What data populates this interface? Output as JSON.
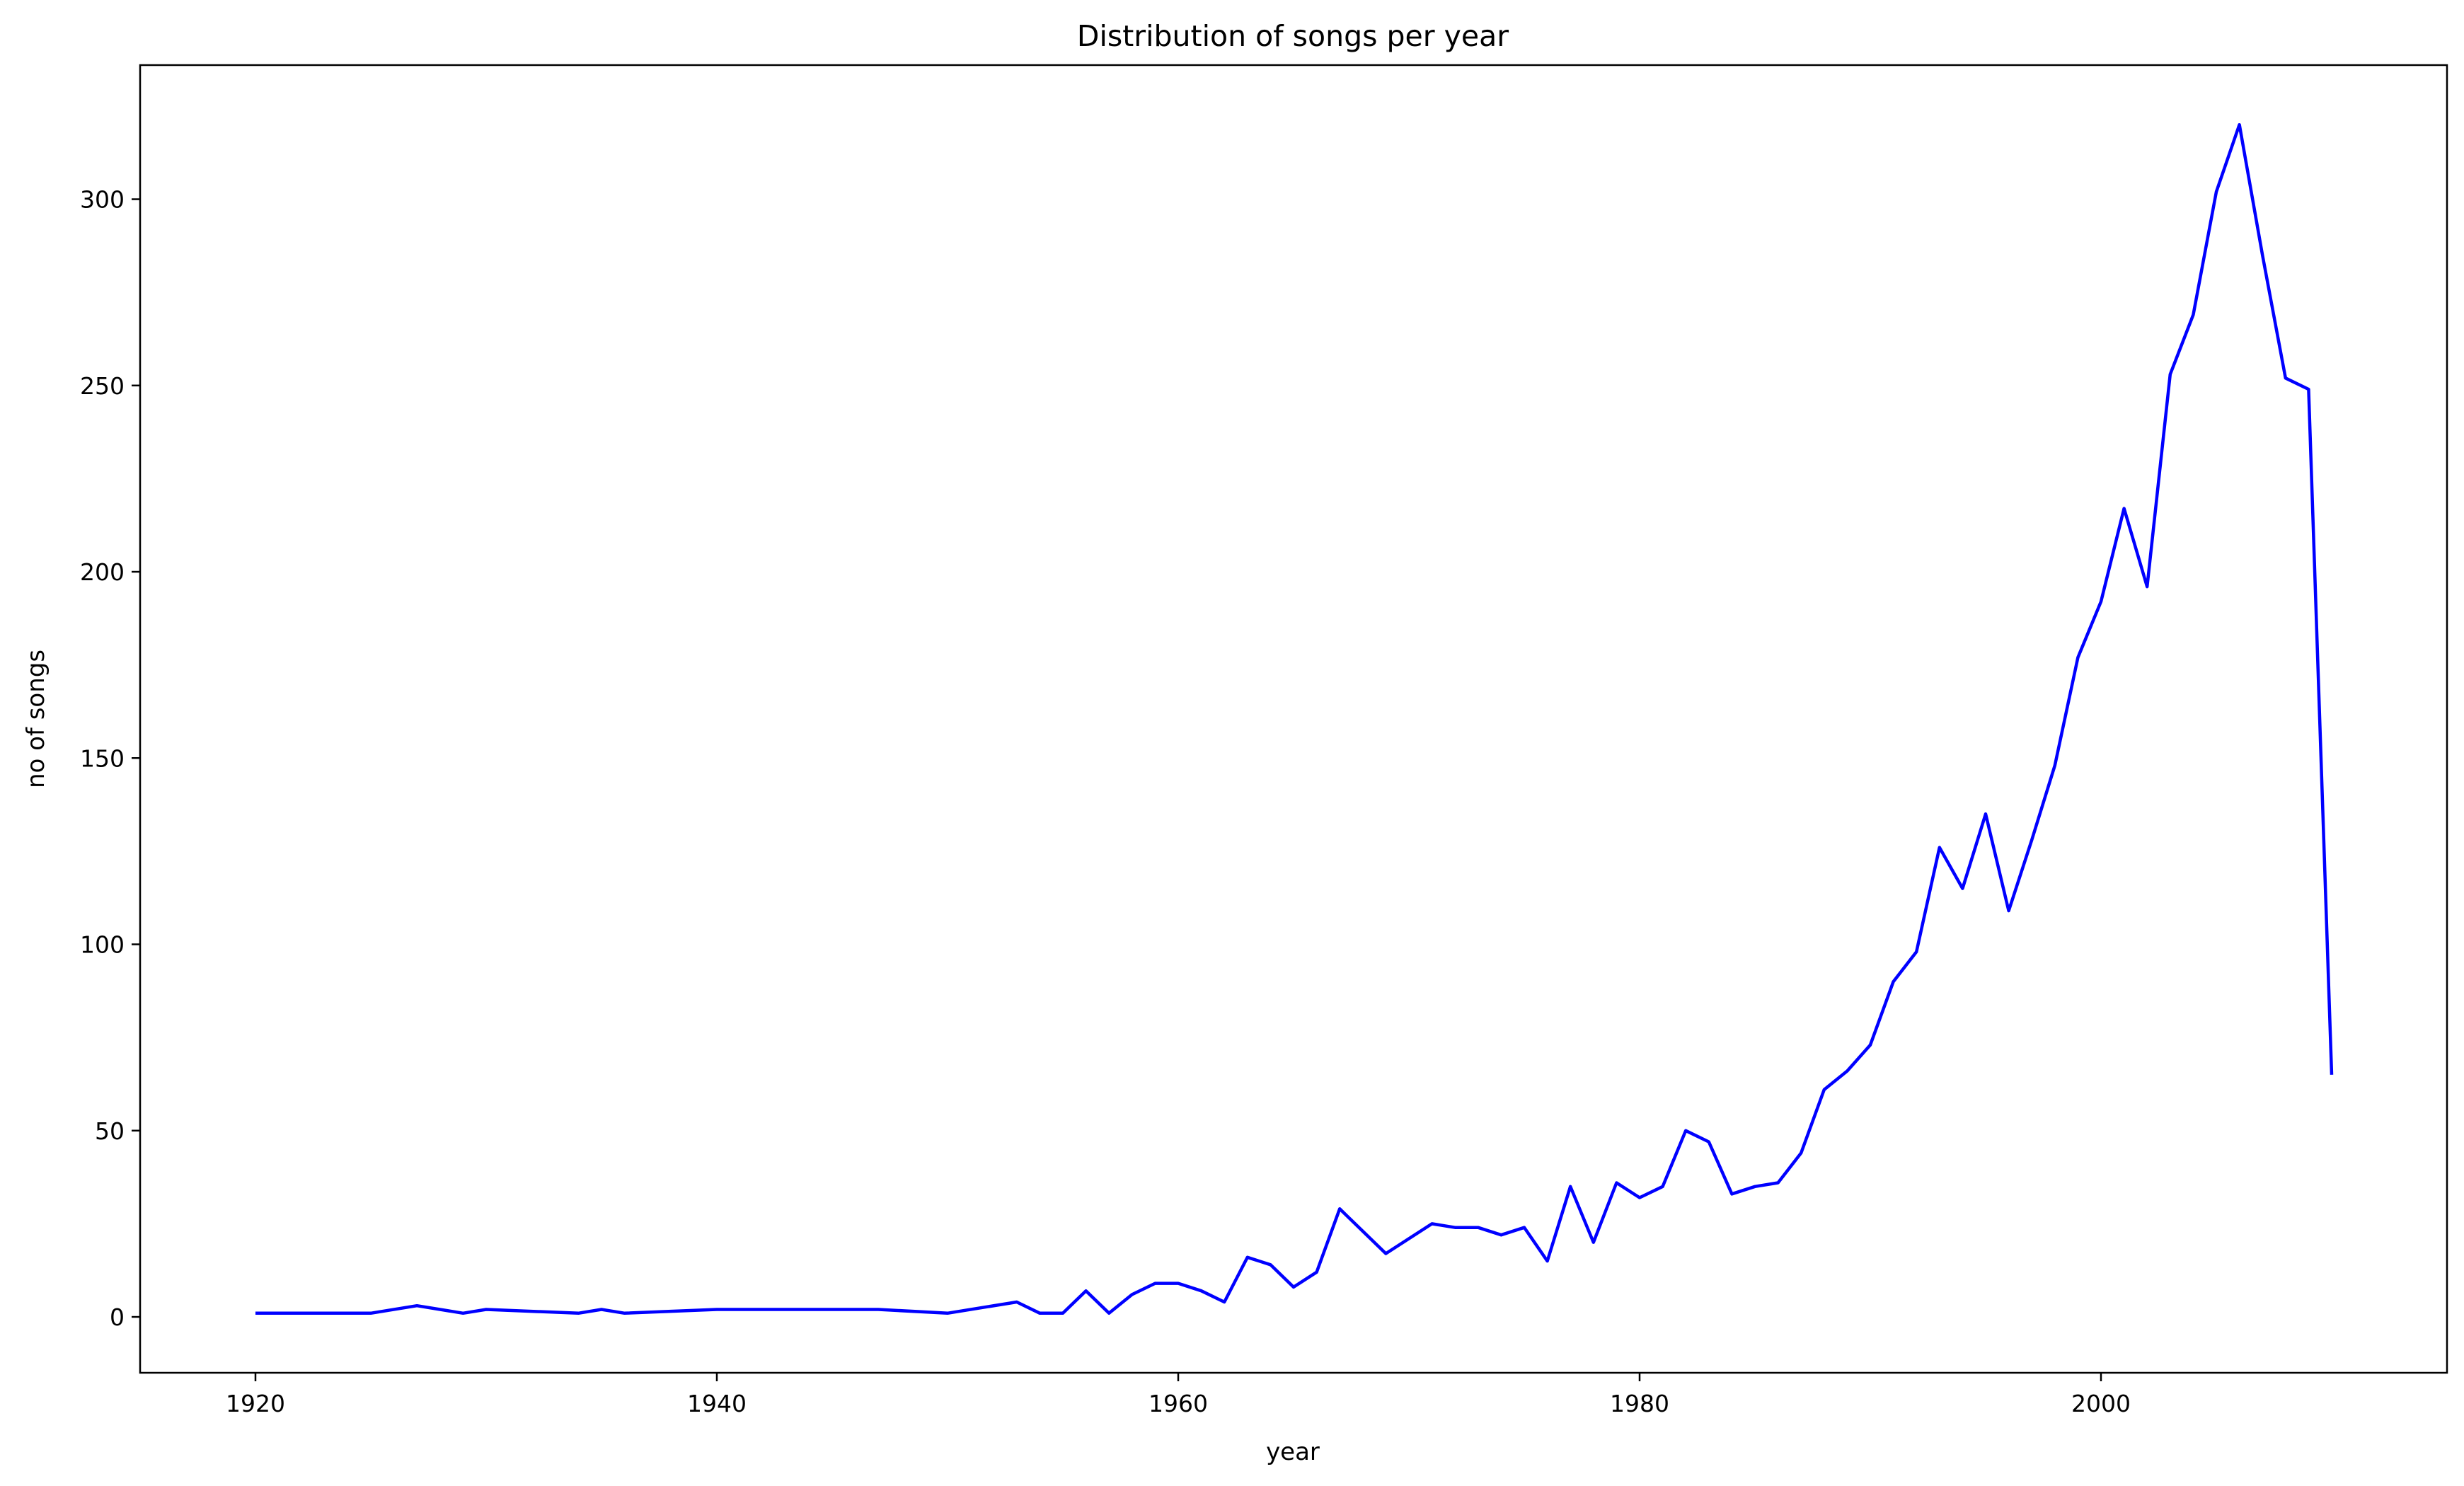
{
  "chart_data": {
    "type": "line",
    "title": "Distribution of songs per year",
    "xlabel": "year",
    "ylabel": "no of songs",
    "xlim": [
      1915,
      2015
    ],
    "ylim": [
      -15,
      336
    ],
    "xticks": [
      1920,
      1940,
      1960,
      1980,
      2000
    ],
    "yticks": [
      0,
      50,
      100,
      150,
      200,
      250,
      300
    ],
    "grid": false,
    "legend": "none",
    "series": [
      {
        "color": "#0000ff",
        "x": [
          1920,
          1925,
          1927,
          1929,
          1930,
          1934,
          1935,
          1936,
          1940,
          1947,
          1950,
          1953,
          1954,
          1955,
          1956,
          1957,
          1958,
          1959,
          1960,
          1961,
          1962,
          1963,
          1964,
          1965,
          1966,
          1967,
          1969,
          1971,
          1972,
          1973,
          1974,
          1975,
          1976,
          1977,
          1978,
          1979,
          1980,
          1981,
          1982,
          1983,
          1984,
          1985,
          1986,
          1987,
          1988,
          1989,
          1990,
          1991,
          1992,
          1993,
          1994,
          1995,
          1996,
          1997,
          1998,
          1999,
          2000,
          2001,
          2002,
          2003,
          2004,
          2005,
          2006,
          2007,
          2008,
          2009,
          2010
        ],
        "y": [
          1,
          1,
          3,
          1,
          2,
          1,
          2,
          1,
          2,
          2,
          1,
          4,
          1,
          1,
          7,
          1,
          6,
          9,
          9,
          7,
          4,
          16,
          14,
          8,
          12,
          29,
          17,
          25,
          24,
          24,
          22,
          24,
          15,
          35,
          20,
          36,
          32,
          35,
          50,
          47,
          33,
          35,
          36,
          44,
          61,
          66,
          73,
          90,
          98,
          126,
          115,
          135,
          109,
          128,
          148,
          177,
          192,
          217,
          196,
          253,
          269,
          302,
          320,
          285,
          252,
          249,
          65
        ]
      }
    ]
  }
}
